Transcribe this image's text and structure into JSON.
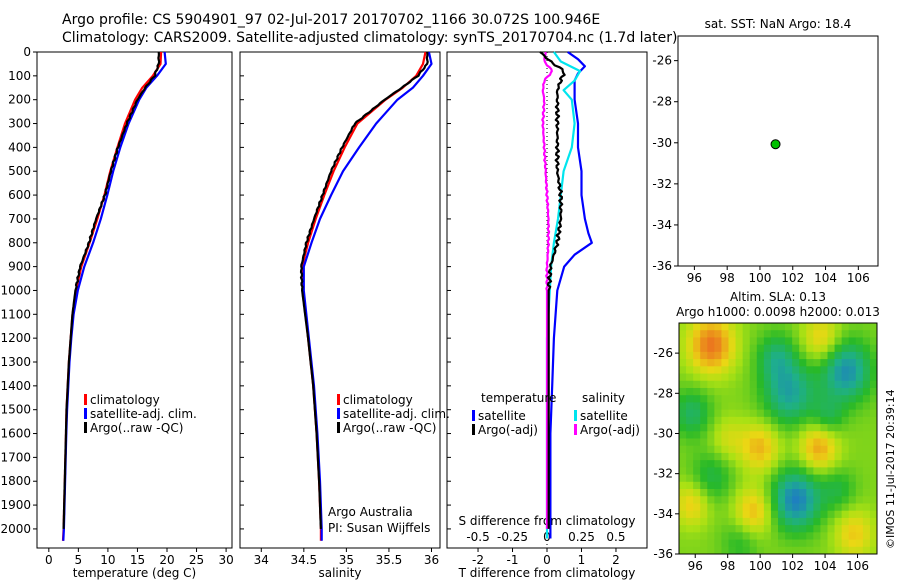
{
  "header": {
    "line1": "Argo profile: CS 5904901_97 02-Jul-2017 20170702_1166 30.072S 100.946E",
    "line2": "Climatology: CARS2009. Satellite-adjusted climatology: synTS_20170704.nc (1.7d later)"
  },
  "footer": {
    "stamp": "©IMOS 11-Jul-2017 20:39:14"
  },
  "colors": {
    "climatology": "#ff0000",
    "satellite": "#0000ff",
    "argo": "#000000",
    "temp_sat": "#0000ff",
    "sal_sat": "#00e5ee",
    "sal_argo": "#ff00ff",
    "marker": "#00c000"
  },
  "chart_data": [
    {
      "type": "line",
      "id": "temperature",
      "xlabel": "temperature (deg C)",
      "xlim": [
        -2,
        31
      ],
      "xticks": [
        0,
        5,
        10,
        15,
        20,
        25,
        30
      ],
      "ylim": [
        0,
        2080
      ],
      "yticks": [
        0,
        100,
        200,
        300,
        400,
        500,
        600,
        700,
        800,
        900,
        1000,
        1100,
        1200,
        1300,
        1400,
        1500,
        1600,
        1700,
        1800,
        1900,
        2000
      ],
      "legend": [
        "climatology",
        "satellite-adj. clim.",
        "Argo(..raw -QC)"
      ],
      "series": [
        {
          "name": "climatology",
          "depth": [
            0,
            50,
            100,
            150,
            200,
            300,
            400,
            500,
            600,
            700,
            800,
            900,
            1000,
            1100,
            1200,
            1300,
            1400,
            1500,
            1600,
            1700,
            1800,
            1900,
            2000,
            2050
          ],
          "values": [
            19.0,
            18.9,
            17.6,
            15.8,
            14.6,
            12.9,
            11.6,
            10.4,
            9.4,
            8.2,
            6.9,
            5.5,
            4.6,
            4.0,
            3.7,
            3.4,
            3.2,
            3.0,
            2.9,
            2.8,
            2.7,
            2.6,
            2.5,
            2.4
          ]
        },
        {
          "name": "satellite-adj. clim.",
          "depth": [
            0,
            50,
            100,
            150,
            200,
            300,
            400,
            500,
            600,
            700,
            800,
            900,
            1000,
            1100,
            1200,
            1300,
            1400,
            1500,
            1600,
            1700,
            1800,
            1900,
            2000,
            2050
          ],
          "values": [
            19.6,
            19.8,
            18.3,
            16.5,
            15.3,
            13.5,
            12.1,
            10.9,
            9.9,
            8.8,
            7.5,
            6.0,
            4.9,
            4.2,
            3.8,
            3.5,
            3.3,
            3.1,
            2.95,
            2.85,
            2.75,
            2.65,
            2.55,
            2.45
          ]
        },
        {
          "name": "Argo(..raw -QC)",
          "depth": [
            0,
            50,
            100,
            150,
            200,
            300,
            400,
            500,
            600,
            700,
            800,
            900,
            1000,
            1100,
            1200,
            1300,
            1400,
            1500,
            1600,
            1700,
            1800,
            1900,
            2000
          ],
          "values": [
            18.6,
            18.6,
            17.9,
            16.3,
            15.0,
            13.2,
            11.7,
            10.5,
            9.5,
            8.0,
            6.8,
            5.3,
            4.5,
            4.0,
            3.7,
            3.4,
            3.2,
            3.0,
            2.9,
            2.8,
            2.7,
            2.6,
            2.5
          ]
        }
      ]
    },
    {
      "type": "line",
      "id": "salinity",
      "xlabel": "salinity",
      "xlim": [
        33.75,
        36.1
      ],
      "xticks": [
        34,
        34.5,
        35,
        35.5,
        36
      ],
      "ylim": [
        0,
        2080
      ],
      "legend": [
        "climatology",
        "satellite-adj. clim.",
        "Argo(..raw -QC)"
      ],
      "note": [
        "Argo Australia",
        "PI: Susan Wijffels"
      ],
      "series": [
        {
          "name": "climatology",
          "depth": [
            0,
            50,
            100,
            150,
            200,
            300,
            400,
            500,
            600,
            700,
            800,
            900,
            1000,
            1200,
            1400,
            1600,
            1800,
            2000,
            2050
          ],
          "values": [
            35.93,
            35.9,
            35.82,
            35.66,
            35.46,
            35.13,
            34.98,
            34.85,
            34.74,
            34.64,
            34.55,
            34.48,
            34.49,
            34.55,
            34.61,
            34.65,
            34.68,
            34.7,
            34.7
          ]
        },
        {
          "name": "satellite-adj. clim.",
          "depth": [
            0,
            50,
            100,
            150,
            200,
            300,
            400,
            500,
            600,
            700,
            800,
            900,
            1000,
            1200,
            1400,
            1600,
            1800,
            2000,
            2050
          ],
          "values": [
            35.97,
            36.0,
            35.9,
            35.78,
            35.6,
            35.35,
            35.15,
            34.96,
            34.82,
            34.69,
            34.59,
            34.5,
            34.5,
            34.56,
            34.62,
            34.66,
            34.69,
            34.71,
            34.71
          ]
        },
        {
          "name": "Argo(..raw -QC)",
          "depth": [
            0,
            50,
            100,
            150,
            200,
            300,
            400,
            500,
            600,
            700,
            800,
            900,
            1000,
            1200,
            1400,
            1600,
            1800,
            2000
          ],
          "values": [
            35.95,
            35.95,
            35.84,
            35.65,
            35.45,
            35.1,
            34.95,
            34.82,
            34.72,
            34.62,
            34.53,
            34.47,
            34.48,
            34.55,
            34.61,
            34.65,
            34.68,
            34.7
          ]
        }
      ]
    },
    {
      "type": "line",
      "id": "difference",
      "xlabel": "T difference from climatology",
      "xlabel_top": "S difference from climatology",
      "xlim": [
        -2.9,
        2.9
      ],
      "xticks": [
        -2,
        -1,
        0,
        1,
        2
      ],
      "xticks_top": [
        "-0.5",
        "-0.25",
        "0",
        "0.25",
        "0.5"
      ],
      "legend_titles": [
        "temperature",
        "salinity"
      ],
      "legend": [
        "satellite",
        "Argo(-adj)",
        "satellite",
        "Argo(-adj)"
      ],
      "series": [
        {
          "name": "satellite",
          "group": "temperature",
          "depth": [
            0,
            30,
            60,
            90,
            120,
            160,
            200,
            300,
            400,
            500,
            600,
            700,
            760,
            800,
            850,
            900,
            1000,
            1200,
            1400,
            1600,
            1800,
            2000,
            2040
          ],
          "values": [
            0.6,
            0.9,
            1.1,
            0.9,
            0.8,
            0.8,
            0.8,
            0.9,
            0.9,
            1.0,
            1.0,
            1.1,
            1.2,
            1.3,
            0.8,
            0.5,
            0.3,
            0.2,
            0.15,
            0.1,
            0.1,
            0.1,
            0.1
          ]
        },
        {
          "name": "Argo(-adj)",
          "group": "temperature",
          "depth": [
            0,
            40,
            80,
            120,
            160,
            200,
            300,
            400,
            500,
            600,
            700,
            800,
            850,
            900,
            1000,
            1200,
            1400,
            1600,
            1800,
            2000
          ],
          "values": [
            -0.2,
            0.1,
            0.5,
            0.4,
            0.3,
            0.3,
            0.3,
            0.3,
            0.3,
            0.4,
            0.4,
            0.3,
            0.2,
            0.1,
            0.05,
            0.05,
            0.05,
            0.05,
            0.05,
            0.05
          ]
        },
        {
          "name": "satellite",
          "group": "salinity",
          "depth": [
            0,
            40,
            80,
            120,
            160,
            200,
            300,
            400,
            500,
            600,
            700,
            800,
            900,
            1000,
            1200,
            1400,
            1600,
            1800,
            2000,
            2040
          ],
          "values": [
            0.05,
            0.1,
            0.24,
            0.2,
            0.12,
            0.18,
            0.2,
            0.18,
            0.12,
            0.1,
            0.08,
            0.05,
            0.03,
            0.02,
            0.0,
            0.0,
            0.0,
            0.0,
            0.0,
            0.0
          ]
        },
        {
          "name": "Argo(-adj)",
          "group": "salinity",
          "depth": [
            0,
            40,
            80,
            120,
            160,
            200,
            300,
            400,
            500,
            600,
            700,
            800,
            900,
            1000,
            1200,
            1400,
            1600,
            1800,
            2000
          ],
          "values": [
            -0.01,
            -0.02,
            0.04,
            -0.02,
            -0.03,
            -0.02,
            -0.03,
            -0.02,
            -0.01,
            0.0,
            0.01,
            0.01,
            0.0,
            0.0,
            0.0,
            0.0,
            0.0,
            0.0,
            0.0
          ]
        }
      ]
    },
    {
      "type": "scatter",
      "id": "location-map",
      "title": "sat. SST: NaN Argo: 18.4",
      "xlim": [
        95,
        107.2
      ],
      "xticks": [
        96,
        98,
        100,
        102,
        104,
        106
      ],
      "ylim": [
        -36,
        -24.8
      ],
      "yticks": [
        -26,
        -28,
        -30,
        -32,
        -34,
        -36
      ],
      "points": [
        {
          "lon": 100.95,
          "lat": -30.07
        }
      ]
    },
    {
      "type": "heatmap",
      "id": "sla-map",
      "title_lines": [
        "Altim. SLA: 0.13",
        "Argo h1000: 0.0098 h2000: 0.013"
      ],
      "xlim": [
        95,
        107.2
      ],
      "xticks": [
        96,
        98,
        100,
        102,
        104,
        106
      ],
      "ylim": [
        -36,
        -24.5
      ],
      "yticks": [
        -26,
        -28,
        -30,
        -32,
        -34,
        -36
      ],
      "features": [
        {
          "lon": 97.0,
          "lat": -25.6,
          "r": 1.4,
          "v": 0.9
        },
        {
          "lon": 101.0,
          "lat": -26.2,
          "r": 1.2,
          "v": -0.5
        },
        {
          "lon": 103.8,
          "lat": -25.3,
          "r": 1.2,
          "v": 0.5
        },
        {
          "lon": 105.3,
          "lat": -26.9,
          "r": 1.5,
          "v": -0.9
        },
        {
          "lon": 95.8,
          "lat": -29.0,
          "r": 1.2,
          "v": -0.5
        },
        {
          "lon": 98.0,
          "lat": -30.3,
          "r": 1.1,
          "v": 0.3
        },
        {
          "lon": 101.8,
          "lat": -28.0,
          "r": 1.6,
          "v": -0.75
        },
        {
          "lon": 104.2,
          "lat": -29.2,
          "r": 1.0,
          "v": -0.4
        },
        {
          "lon": 100.0,
          "lat": -30.7,
          "r": 1.2,
          "v": 0.6
        },
        {
          "lon": 103.6,
          "lat": -30.7,
          "r": 1.2,
          "v": 0.7
        },
        {
          "lon": 97.0,
          "lat": -32.2,
          "r": 1.3,
          "v": -0.4
        },
        {
          "lon": 95.8,
          "lat": -33.5,
          "r": 1.1,
          "v": 0.5
        },
        {
          "lon": 99.6,
          "lat": -33.9,
          "r": 1.2,
          "v": 0.6
        },
        {
          "lon": 102.2,
          "lat": -33.3,
          "r": 1.5,
          "v": -1.0
        },
        {
          "lon": 104.8,
          "lat": -32.8,
          "r": 1.1,
          "v": -0.35
        },
        {
          "lon": 105.8,
          "lat": -35.0,
          "r": 1.2,
          "v": 0.5
        },
        {
          "lon": 98.8,
          "lat": -35.4,
          "r": 1.2,
          "v": -0.3
        }
      ]
    }
  ]
}
